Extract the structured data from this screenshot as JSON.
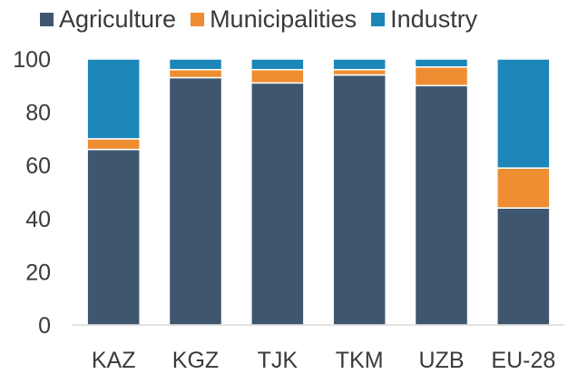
{
  "chart_data": {
    "type": "bar",
    "stacked": true,
    "categories": [
      "KAZ",
      "KGZ",
      "TJK",
      "TKM",
      "UZB",
      "EU-28"
    ],
    "series": [
      {
        "name": "Agriculture",
        "color": "#3f566f",
        "values": [
          66,
          93,
          91,
          94,
          90,
          44
        ]
      },
      {
        "name": "Municipalities",
        "color": "#ef8d32",
        "values": [
          4,
          3,
          5,
          2,
          7,
          15
        ]
      },
      {
        "name": "Industry",
        "color": "#1c86b8",
        "values": [
          30,
          4,
          4,
          4,
          3,
          41
        ]
      }
    ],
    "ylim": [
      0,
      100
    ],
    "yticks": [
      0,
      20,
      40,
      60,
      80,
      100
    ],
    "grid": false,
    "legend_position": "top"
  }
}
